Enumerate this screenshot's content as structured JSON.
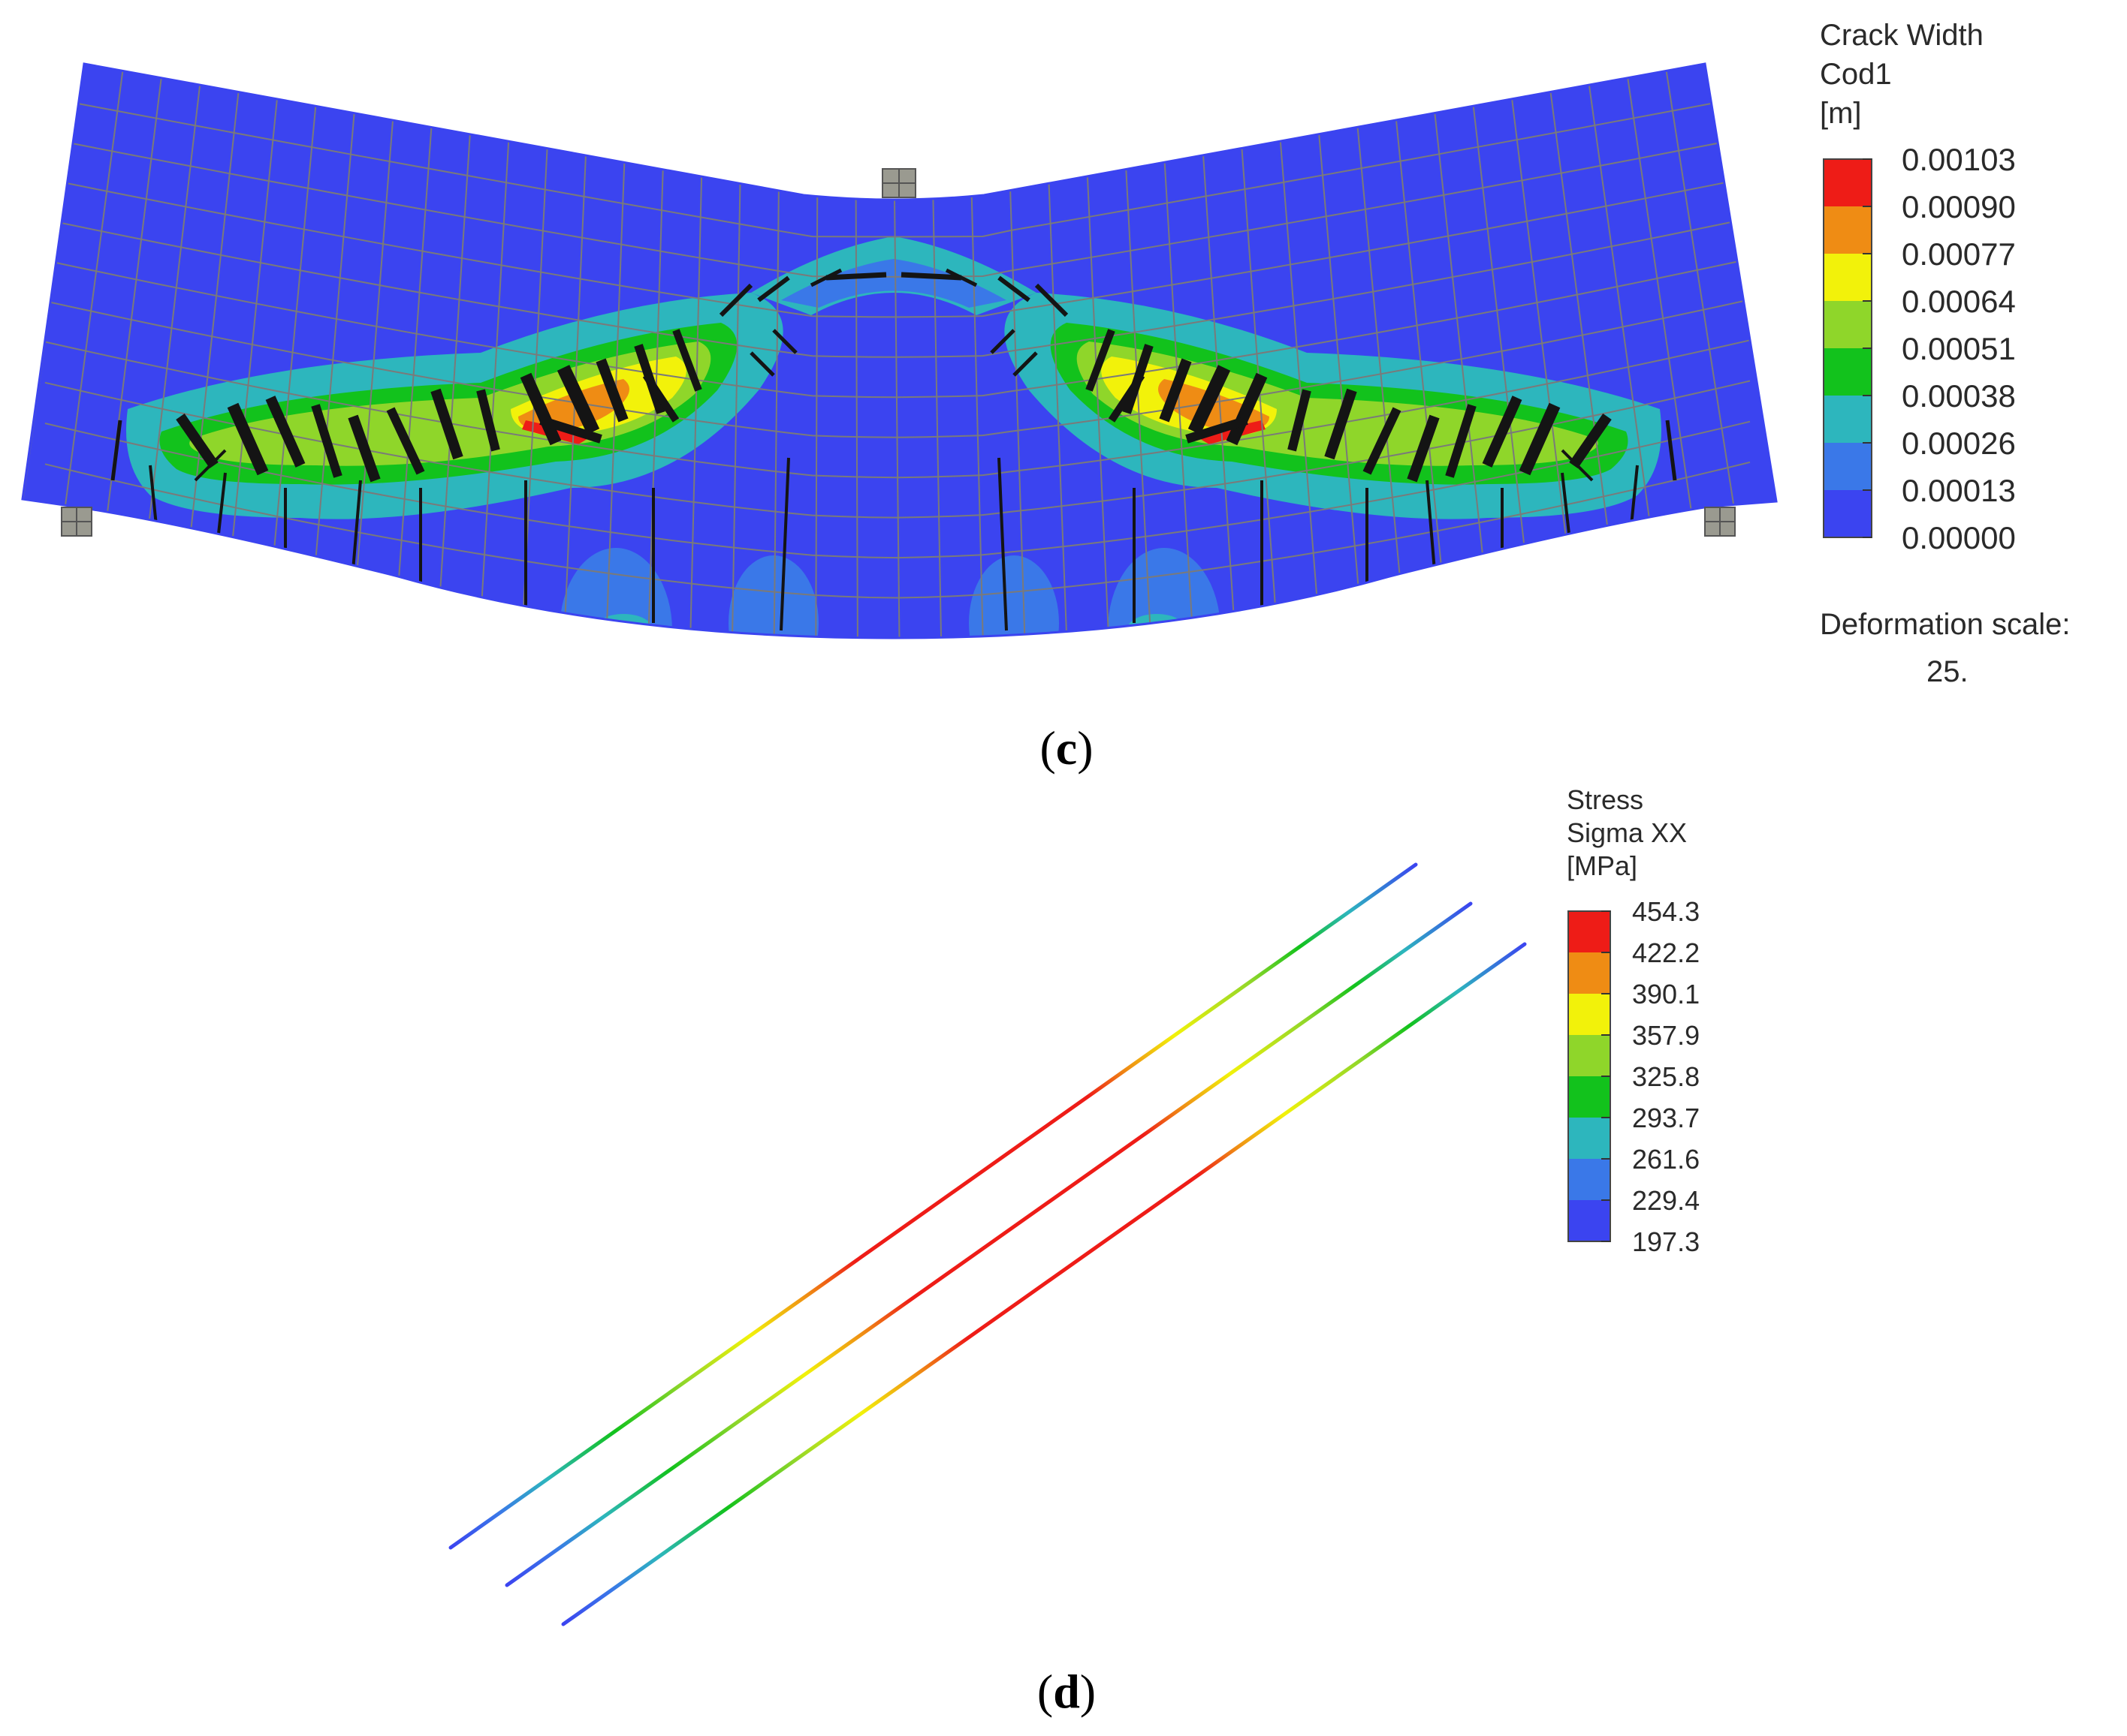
{
  "panel_c": {
    "caption_open": "(",
    "caption_letter": "c",
    "caption_close": ")",
    "legend": {
      "title_lines": [
        "Crack Width",
        "Cod1",
        "[m]"
      ],
      "values": [
        "0.00103",
        "0.00090",
        "0.00077",
        "0.00064",
        "0.00051",
        "0.00038",
        "0.00026",
        "0.00013",
        "0.00000"
      ],
      "colors": [
        "#ee1c17",
        "#ef8c14",
        "#f2f20a",
        "#8fd62a",
        "#12c21c",
        "#2db6bd",
        "#3a78e8",
        "#3b44f0"
      ]
    },
    "deformation_label": "Deformation scale:",
    "deformation_value": "25."
  },
  "panel_d": {
    "caption_open": "(",
    "caption_letter": "d",
    "caption_close": ")",
    "legend": {
      "title_lines": [
        "Stress",
        "Sigma XX",
        "[MPa]"
      ],
      "values": [
        "454.3",
        "422.2",
        "390.1",
        "357.9",
        "325.8",
        "293.7",
        "261.6",
        "229.4",
        "197.3"
      ],
      "colors": [
        "#ee1c17",
        "#ef8c14",
        "#f2f20a",
        "#8fd62a",
        "#12c21c",
        "#2db6bd",
        "#3a78e8",
        "#3b44f0"
      ]
    }
  }
}
